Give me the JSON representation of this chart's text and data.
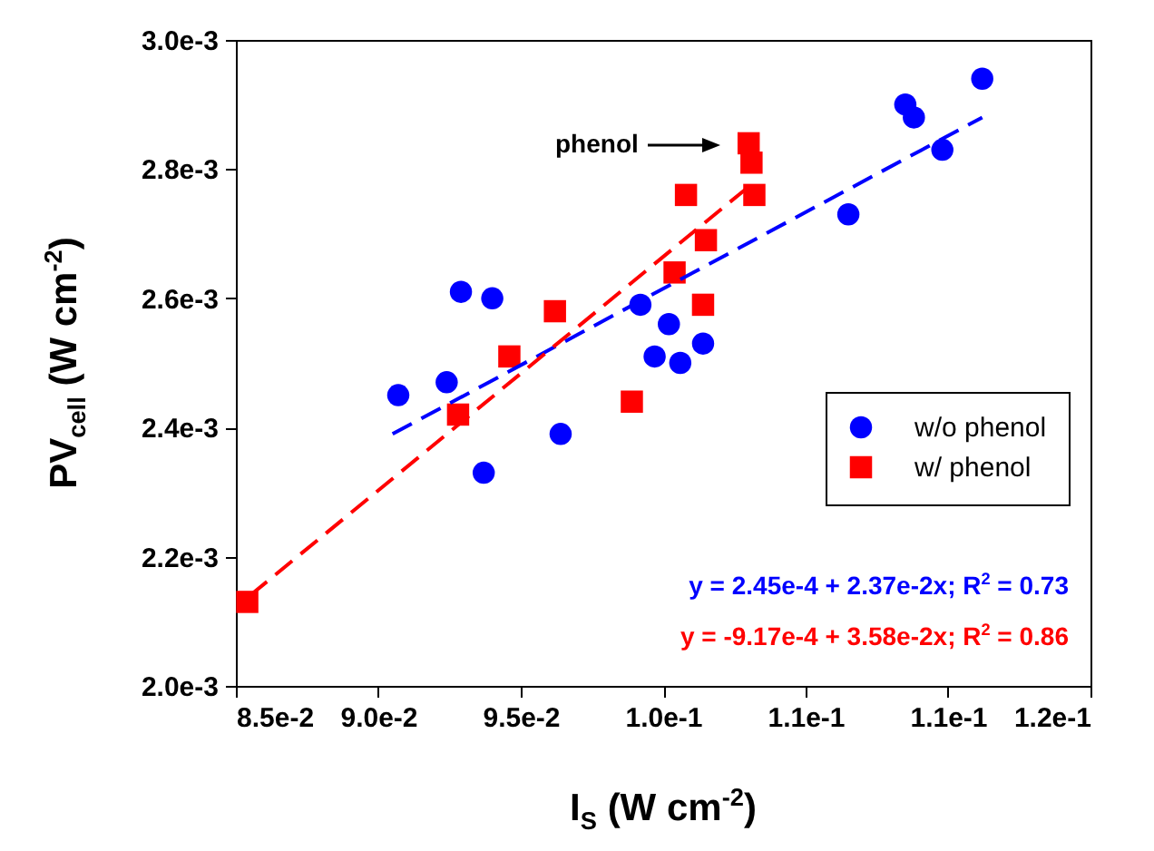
{
  "chart_data": {
    "type": "scatter",
    "xlabel": "I$_{S}$ (W cm$^{-2}$)",
    "ylabel": "PV$_{cell}$ (W cm$^{-2}$)",
    "xlim": [
      0.085,
      0.115
    ],
    "xticks": [
      {
        "value": 0.085,
        "label": "8.5e-2"
      },
      {
        "value": 0.09,
        "label": "9.0e-2"
      },
      {
        "value": 0.095,
        "label": "9.5e-2"
      },
      {
        "value": 0.1,
        "label": "1.0e-1"
      },
      {
        "value": 0.105,
        "label": "1.1e-1"
      },
      {
        "value": 0.11,
        "label": "1.1e-1"
      },
      {
        "value": 0.115,
        "label": "1.2e-1"
      }
    ],
    "ylim": [
      0.002,
      0.003
    ],
    "yticks": [
      {
        "value": 0.002,
        "label": "2.0e-3"
      },
      {
        "value": 0.0022,
        "label": "2.2e-3"
      },
      {
        "value": 0.0024,
        "label": "2.4e-3"
      },
      {
        "value": 0.0026,
        "label": "2.6e-3"
      },
      {
        "value": 0.0028,
        "label": "2.8e-3"
      },
      {
        "value": 0.003,
        "label": "3.0e-3"
      }
    ],
    "grid": false,
    "legend": "right",
    "series": [
      {
        "name": "w/o phenol",
        "marker": "circle",
        "color": "#0000ff",
        "x": [
          0.0907,
          0.0924,
          0.0929,
          0.094,
          0.0937,
          0.0964,
          0.0992,
          0.1002,
          0.0997,
          0.1006,
          0.1014,
          0.1065,
          0.1085,
          0.1088,
          0.1098,
          0.1112
        ],
        "values": [
          0.00245,
          0.00247,
          0.00261,
          0.0026,
          0.00233,
          0.00239,
          0.00259,
          0.00256,
          0.00251,
          0.0025,
          0.00253,
          0.00273,
          0.0029,
          0.00288,
          0.00283,
          0.00294
        ]
      },
      {
        "name": "w/ phenol",
        "marker": "square",
        "color": "#ff0000",
        "x": [
          0.0854,
          0.0928,
          0.0946,
          0.0962,
          0.0989,
          0.1004,
          0.1008,
          0.1015,
          0.1014,
          0.103,
          0.1031,
          0.1032
        ],
        "values": [
          0.00213,
          0.00242,
          0.00251,
          0.00258,
          0.00244,
          0.00264,
          0.00276,
          0.00269,
          0.00259,
          0.00284,
          0.00281,
          0.00276
        ]
      },
      {
        "type": "line",
        "line_style": "dashed",
        "marker": "none",
        "color": "#0000ff",
        "x": [
          0.0905,
          0.1112
        ],
        "values": [
          0.00239,
          0.00288
        ]
      },
      {
        "type": "line",
        "line_style": "dashed",
        "marker": "none",
        "color": "#ff0000",
        "x": [
          0.0855,
          0.1032
        ],
        "values": [
          0.00214,
          0.00278
        ]
      }
    ],
    "annotations": [
      "phenol",
      "y = 2.45e-4 + 2.37e-2x; R$^{2}$ = 0.73",
      "y = -9.17e-4 + 3.58e-2x; R$^{2}$ = 0.86"
    ]
  }
}
